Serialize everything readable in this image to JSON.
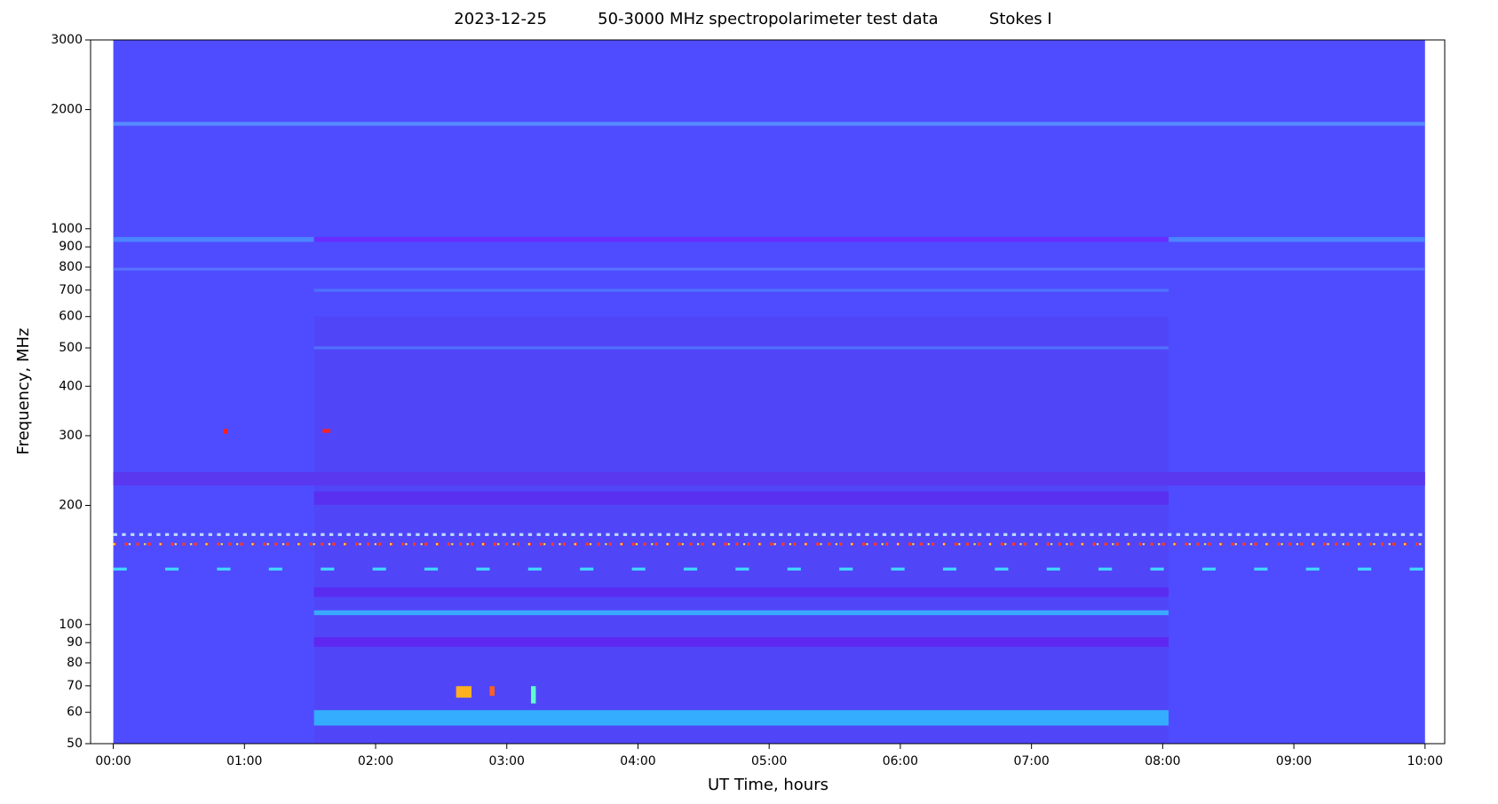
{
  "chart_data": {
    "type": "spectrogram",
    "title": "2023-12-25          50-3000 MHz spectropolarimeter test data          Stokes I",
    "x_label": "UT Time, hours",
    "y_label": "Frequency, MHz",
    "yscale": "log",
    "xlim": [
      -0.173,
      10.15
    ],
    "ylim": [
      50,
      3000
    ],
    "xticks": [
      {
        "value": 0,
        "label": "00:00"
      },
      {
        "value": 1,
        "label": "01:00"
      },
      {
        "value": 2,
        "label": "02:00"
      },
      {
        "value": 3,
        "label": "03:00"
      },
      {
        "value": 4,
        "label": "04:00"
      },
      {
        "value": 5,
        "label": "05:00"
      },
      {
        "value": 6,
        "label": "06:00"
      },
      {
        "value": 7,
        "label": "07:00"
      },
      {
        "value": 8,
        "label": "08:00"
      },
      {
        "value": 9,
        "label": "09:00"
      },
      {
        "value": 10,
        "label": "10:00"
      }
    ],
    "yticks": [
      50,
      60,
      70,
      80,
      90,
      100,
      200,
      300,
      400,
      500,
      600,
      700,
      800,
      900,
      1000,
      2000,
      3000
    ]
  }
}
